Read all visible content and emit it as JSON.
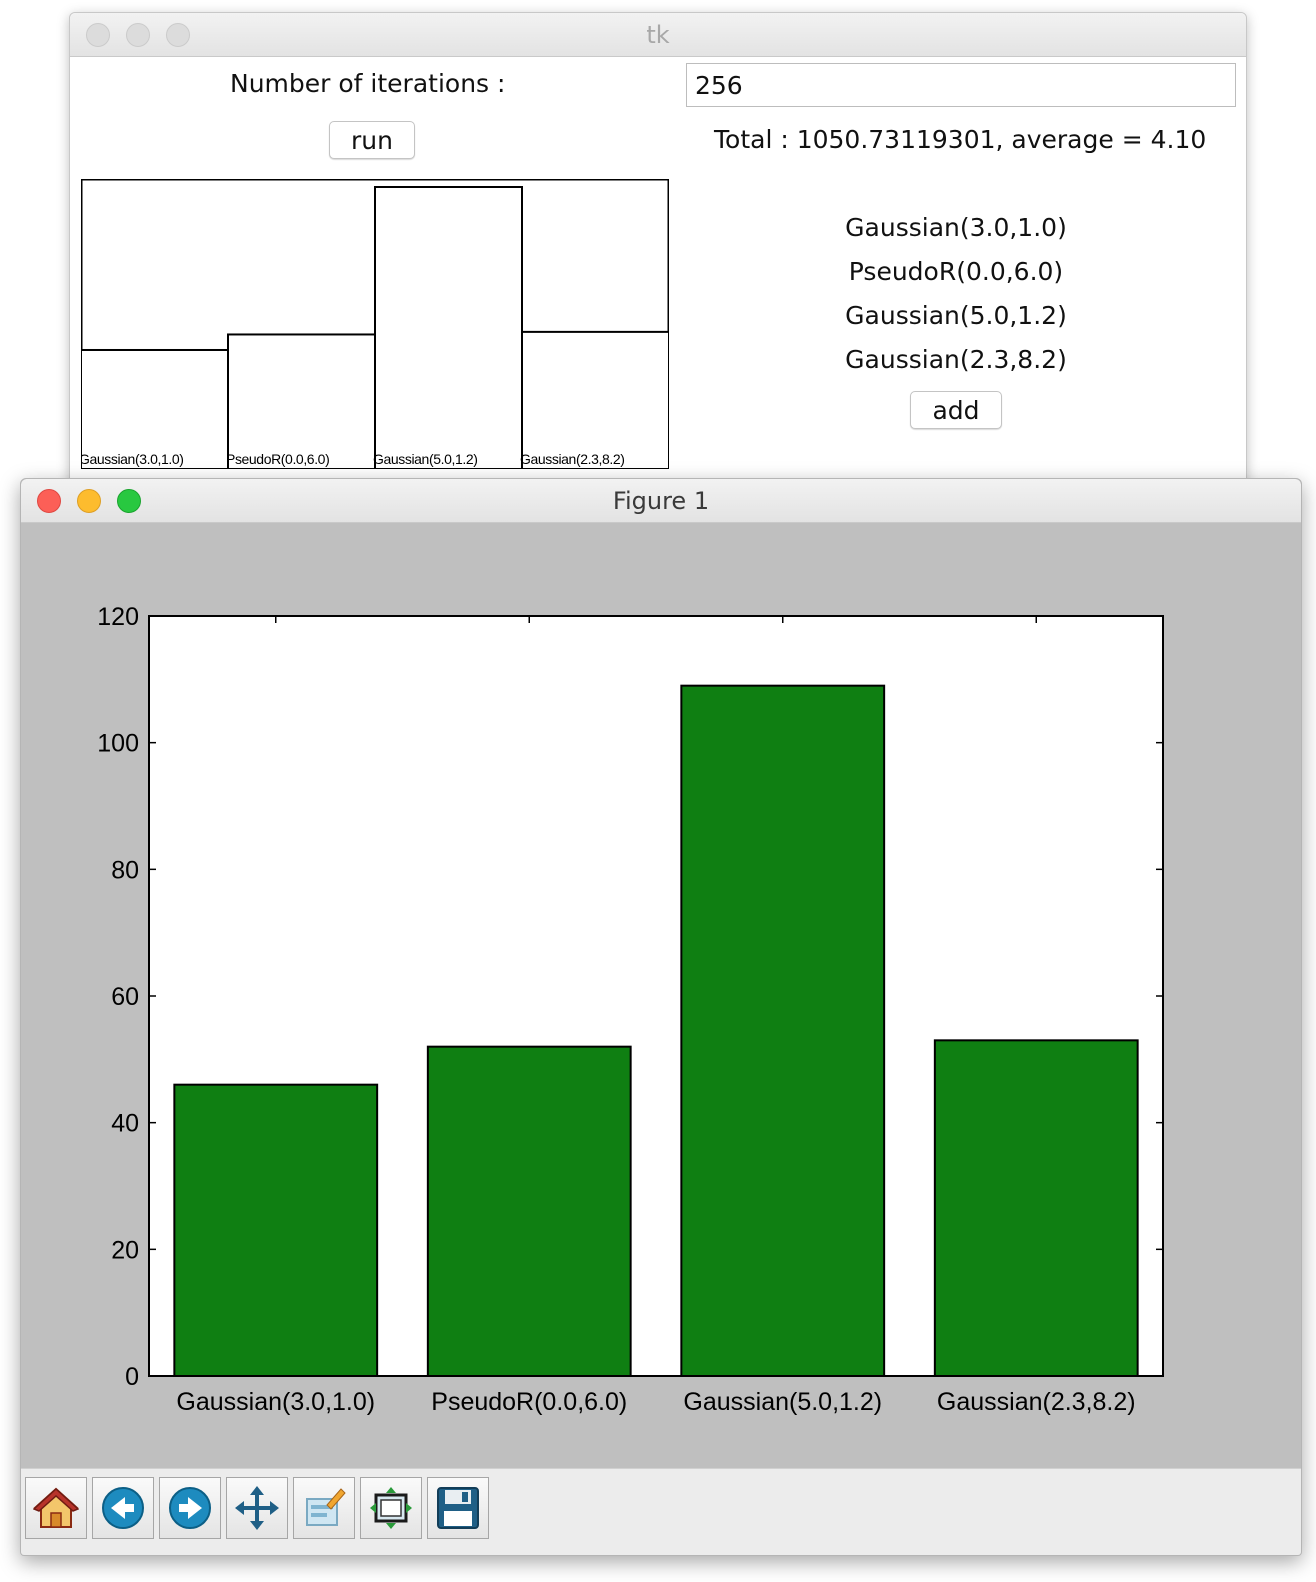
{
  "tk_window": {
    "title": "tk",
    "iterations_label": "Number of iterations :",
    "iterations_value": "256",
    "run_label": "run",
    "total_text": "Total : 1050.73119301, average = 4.10",
    "distributions": [
      "Gaussian(3.0,1.0)",
      "PseudoR(0.0,6.0)",
      "Gaussian(5.0,1.2)",
      "Gaussian(2.3,8.2)"
    ],
    "add_label": "add",
    "canvas_bars": {
      "labels": [
        "Gaussian(3.0,1.0)",
        "PseudoR(0.0,6.0)",
        "Gaussian(5.0,1.2)",
        "Gaussian(2.3,8.2)"
      ],
      "values": [
        46,
        52,
        109,
        53
      ]
    }
  },
  "figure_window": {
    "title": "Figure 1",
    "toolbar": [
      {
        "name": "home",
        "icon": "home-icon"
      },
      {
        "name": "back",
        "icon": "back-arrow-icon"
      },
      {
        "name": "forward",
        "icon": "forward-arrow-icon"
      },
      {
        "name": "pan",
        "icon": "pan-arrows-icon"
      },
      {
        "name": "zoom",
        "icon": "zoom-rect-icon"
      },
      {
        "name": "subplots",
        "icon": "subplots-icon"
      },
      {
        "name": "save",
        "icon": "floppy-disk-icon"
      }
    ]
  },
  "chart_data": {
    "type": "bar",
    "categories": [
      "Gaussian(3.0,1.0)",
      "PseudoR(0.0,6.0)",
      "Gaussian(5.0,1.2)",
      "Gaussian(2.3,8.2)"
    ],
    "values": [
      46,
      52,
      109,
      53
    ],
    "title": "",
    "xlabel": "",
    "ylabel": "",
    "ylim": [
      0,
      120
    ],
    "yticks": [
      "0",
      "20",
      "40",
      "60",
      "80",
      "100",
      "120"
    ],
    "bar_color": "#0f7f12",
    "grid": false
  }
}
